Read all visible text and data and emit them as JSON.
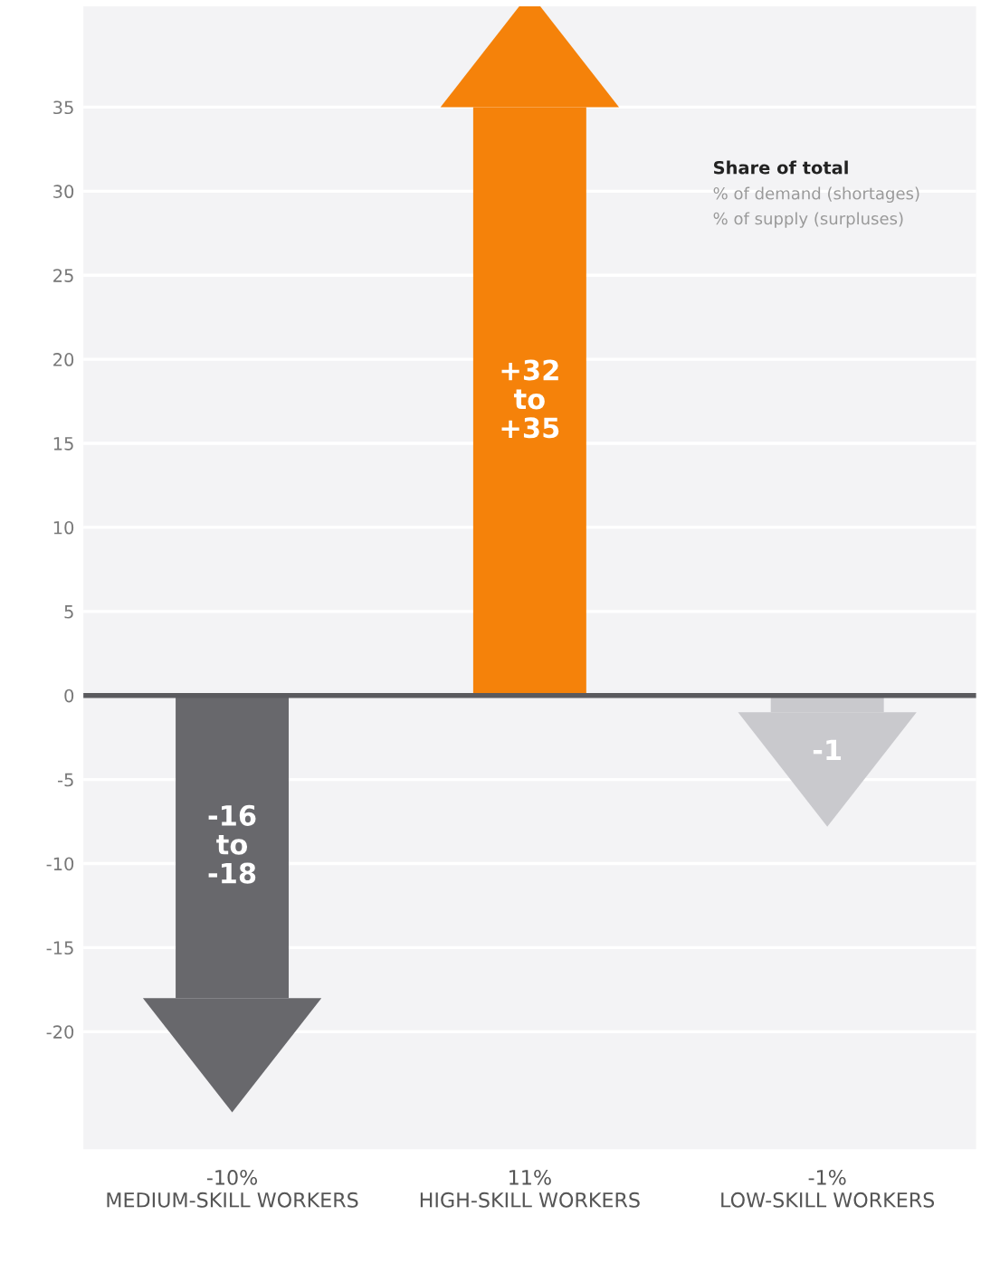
{
  "chart_data": {
    "type": "bar",
    "categories": [
      "-10%\nMEDIUM-SKILL WORKERS",
      "11%\nHIGH-SKILL WORKERS",
      "-1%\nLOW-SKILL WORKERS"
    ],
    "values": [
      -18,
      35,
      -1
    ],
    "colors": [
      "#68686c",
      "#f5820a",
      "#c9c9cd"
    ],
    "value_labels": [
      "-16\nto\n-18",
      "+32\nto\n+35",
      "-1"
    ],
    "ylim": [
      -27,
      41
    ],
    "yticks": [
      -20,
      -15,
      -10,
      -5,
      0,
      5,
      10,
      15,
      20,
      25,
      30,
      35
    ],
    "grid": "y",
    "legend_title": "Share of total",
    "annotations": [
      "% of demand (shortages)",
      "% of supply (surpluses)"
    ],
    "ref_lines": [
      {
        "axis": "y",
        "value": 0,
        "color": "#5a5a5e"
      }
    ]
  }
}
